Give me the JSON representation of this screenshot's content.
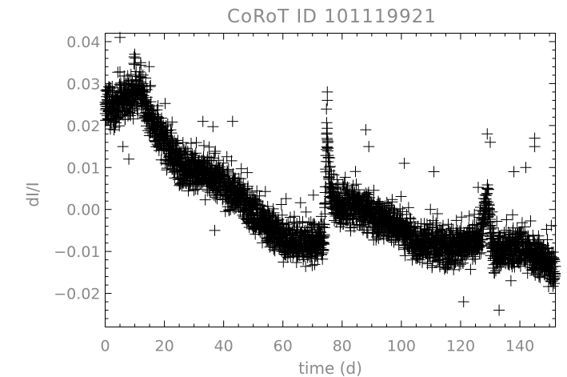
{
  "chart_data": {
    "type": "scatter",
    "title": "CoRoT ID 101119921",
    "xlabel": "time (d)",
    "ylabel": "dI/I",
    "xlim": [
      0,
      152
    ],
    "ylim": [
      -0.028,
      0.042
    ],
    "xticks": [
      0,
      20,
      40,
      60,
      80,
      100,
      120,
      140
    ],
    "xtick_labels": [
      "0",
      "20",
      "40",
      "60",
      "80",
      "100",
      "120",
      "140"
    ],
    "yticks": [
      -0.02,
      -0.01,
      0.0,
      0.01,
      0.02,
      0.03,
      0.04
    ],
    "ytick_labels": [
      "−0.02",
      "−0.01",
      "0.00",
      "0.01",
      "0.02",
      "0.03",
      "0.04"
    ],
    "marker": "plus",
    "grid": false,
    "trend": [
      [
        0,
        0.024
      ],
      [
        5,
        0.025
      ],
      [
        10,
        0.027
      ],
      [
        12,
        0.028
      ],
      [
        15,
        0.022
      ],
      [
        20,
        0.016
      ],
      [
        25,
        0.011
      ],
      [
        30,
        0.009
      ],
      [
        35,
        0.008
      ],
      [
        40,
        0.006
      ],
      [
        45,
        0.003
      ],
      [
        50,
        -0.001
      ],
      [
        55,
        -0.004
      ],
      [
        60,
        -0.007
      ],
      [
        65,
        -0.008
      ],
      [
        70,
        -0.008
      ],
      [
        74,
        -0.007
      ],
      [
        74.8,
        0.018
      ],
      [
        76,
        0.004
      ],
      [
        78,
        0.001
      ],
      [
        80,
        0.0
      ],
      [
        85,
        0.001
      ],
      [
        90,
        -0.001
      ],
      [
        95,
        -0.003
      ],
      [
        100,
        -0.005
      ],
      [
        105,
        -0.008
      ],
      [
        110,
        -0.008
      ],
      [
        115,
        -0.009
      ],
      [
        120,
        -0.009
      ],
      [
        125,
        -0.008
      ],
      [
        127,
        -0.006
      ],
      [
        129,
        0.003
      ],
      [
        130,
        -0.004
      ],
      [
        131,
        -0.01
      ],
      [
        135,
        -0.01
      ],
      [
        140,
        -0.009
      ],
      [
        145,
        -0.011
      ],
      [
        150,
        -0.013
      ],
      [
        152,
        -0.015
      ]
    ],
    "outliers": [
      [
        5,
        0.041
      ],
      [
        10,
        0.037
      ],
      [
        3,
        0.019
      ],
      [
        6,
        0.015
      ],
      [
        8,
        0.012
      ],
      [
        12,
        0.035
      ],
      [
        37,
        -0.005
      ],
      [
        33,
        0.021
      ],
      [
        43,
        0.021
      ],
      [
        75,
        0.028
      ],
      [
        75,
        0.026
      ],
      [
        88,
        0.019
      ],
      [
        89,
        0.015
      ],
      [
        101,
        0.011
      ],
      [
        111,
        0.009
      ],
      [
        129,
        0.018
      ],
      [
        130,
        0.016
      ],
      [
        145,
        0.017
      ],
      [
        145,
        0.015
      ],
      [
        133,
        -0.024
      ],
      [
        121,
        -0.022
      ],
      [
        138,
        0.009
      ],
      [
        142,
        0.01
      ],
      [
        137,
        -0.017
      ]
    ]
  }
}
